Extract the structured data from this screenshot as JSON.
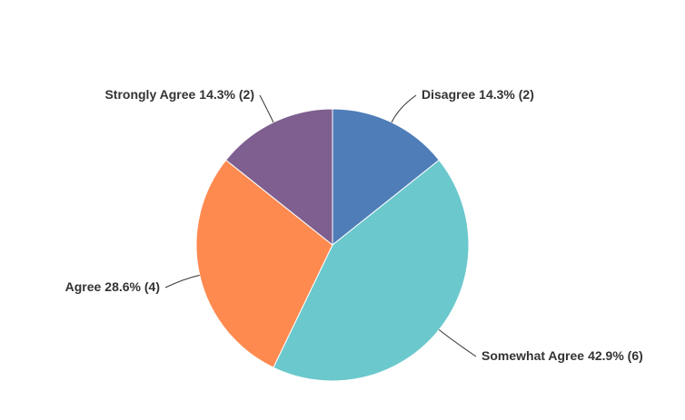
{
  "chart_data": {
    "type": "pie",
    "categories": [
      "Disagree",
      "Somewhat Agree",
      "Agree",
      "Strongly Agree"
    ],
    "values": [
      14.3,
      42.9,
      28.6,
      14.3
    ],
    "value_labels": [
      "14.3% (2)",
      "42.9% (6)",
      "28.6% (4)",
      "14.3% (2)"
    ],
    "colors": [
      "#4f7db8",
      "#6bc8cc",
      "#ff8a50",
      "#7e5f8f"
    ]
  }
}
